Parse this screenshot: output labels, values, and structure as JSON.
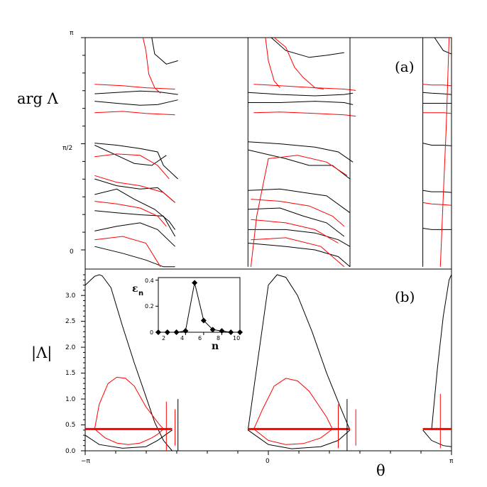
{
  "chart_data": [
    {
      "panel": "(a)",
      "type": "line",
      "ylabel": "arg Λ",
      "y_ticks": [
        "π",
        "π/2",
        "0"
      ],
      "series": [
        {
          "color": "#000000",
          "x": [
            -2.98,
            -2.6,
            -2.2,
            -1.9,
            -1.55
          ],
          "y": [
            2.31,
            2.33,
            2.35,
            2.34,
            2.3
          ]
        },
        {
          "color": "#000000",
          "x": [
            -2.98,
            -2.6,
            -2.2,
            -1.9,
            -1.55
          ],
          "y": [
            2.2,
            2.17,
            2.14,
            2.15,
            2.22
          ]
        },
        {
          "color": "#000000",
          "x": [
            -2.98,
            -2.6,
            -2.2,
            -1.9,
            -1.8,
            -1.55
          ],
          "y": [
            1.58,
            1.55,
            1.5,
            1.45,
            1.25,
            1.05
          ]
        },
        {
          "color": "#000000",
          "x": [
            -2.98,
            -2.6,
            -2.3,
            -2.0,
            -1.75
          ],
          "y": [
            1.55,
            1.4,
            1.28,
            1.25,
            1.4
          ]
        },
        {
          "color": "#000000",
          "x": [
            -2.98,
            -2.6,
            -2.2,
            -1.9,
            -1.6
          ],
          "y": [
            1.05,
            0.95,
            0.9,
            0.92,
            0.7
          ]
        },
        {
          "color": "#000000",
          "x": [
            -2.98,
            -2.6,
            -2.3,
            -1.95,
            -1.7,
            -1.6
          ],
          "y": [
            0.82,
            0.9,
            0.75,
            0.6,
            0.42,
            0.3
          ]
        },
        {
          "color": "#000000",
          "x": [
            -2.98,
            -2.6,
            -2.2,
            -1.8,
            -1.6
          ],
          "y": [
            0.58,
            0.55,
            0.52,
            0.5,
            0.2
          ]
        },
        {
          "color": "#000000",
          "x": [
            -2.98,
            -2.6,
            -2.2,
            -1.9,
            -1.6
          ],
          "y": [
            0.28,
            0.35,
            0.4,
            0.3,
            0.05
          ]
        },
        {
          "color": "#000000",
          "x": [
            -2.98,
            -2.5,
            -2.1,
            -1.8,
            -1.6
          ],
          "y": [
            0.05,
            -0.05,
            -0.15,
            -0.25,
            -0.25
          ]
        },
        {
          "color": "#000000",
          "x": [
            -2.0,
            -1.95,
            -1.75,
            -1.55
          ],
          "y": [
            3.3,
            2.9,
            2.75,
            2.8
          ]
        },
        {
          "color": "#ff0000",
          "x": [
            -2.15,
            -2.1,
            -2.05,
            -1.95,
            -1.85
          ],
          "y": [
            3.3,
            2.95,
            2.6,
            2.4,
            2.32
          ]
        },
        {
          "color": "#ff0000",
          "x": [
            -2.98,
            -2.5,
            -2.1,
            -1.6
          ],
          "y": [
            2.45,
            2.43,
            2.4,
            2.38
          ]
        },
        {
          "color": "#ff0000",
          "x": [
            -2.98,
            -2.5,
            -2.1,
            -1.6
          ],
          "y": [
            2.03,
            2.05,
            2.02,
            2.0
          ]
        },
        {
          "color": "#ff0000",
          "x": [
            -2.98,
            -2.6,
            -2.2,
            -1.9,
            -1.7
          ],
          "y": [
            1.38,
            1.42,
            1.4,
            1.25,
            1.05
          ]
        },
        {
          "color": "#ff0000",
          "x": [
            -2.98,
            -2.6,
            -2.2,
            -1.8,
            -1.6
          ],
          "y": [
            1.1,
            1.0,
            0.95,
            0.85,
            0.7
          ]
        },
        {
          "color": "#ff0000",
          "x": [
            -2.98,
            -2.6,
            -2.2,
            -1.9,
            -1.75
          ],
          "y": [
            0.72,
            0.68,
            0.62,
            0.5,
            0.35
          ]
        },
        {
          "color": "#ff0000",
          "x": [
            -2.98,
            -2.5,
            -2.1,
            -1.85
          ],
          "y": [
            0.15,
            0.2,
            0.1,
            -0.25
          ]
        },
        {
          "color": "#000000",
          "x": [
            -0.35,
            -0.35
          ],
          "y": [
            -0.25,
            3.3
          ]
        },
        {
          "color": "#000000",
          "x": [
            0.05,
            0.3,
            0.7,
            1.0,
            1.3
          ],
          "y": [
            3.3,
            2.95,
            2.85,
            2.88,
            2.92
          ]
        },
        {
          "color": "#000000",
          "x": [
            -0.35,
            0.2,
            0.8,
            1.3,
            1.45
          ],
          "y": [
            2.33,
            2.3,
            2.28,
            2.3,
            2.32
          ]
        },
        {
          "color": "#000000",
          "x": [
            -0.35,
            0.2,
            0.8,
            1.3,
            1.45
          ],
          "y": [
            2.18,
            2.18,
            2.2,
            2.18,
            2.15
          ]
        },
        {
          "color": "#000000",
          "x": [
            -0.35,
            0.2,
            0.8,
            1.2,
            1.45
          ],
          "y": [
            1.6,
            1.57,
            1.52,
            1.45,
            1.3
          ]
        },
        {
          "color": "#000000",
          "x": [
            -0.35,
            0.3,
            0.7,
            1.1,
            1.4
          ],
          "y": [
            1.48,
            1.35,
            1.25,
            1.25,
            1.05
          ]
        },
        {
          "color": "#000000",
          "x": [
            -0.35,
            0.2,
            0.6,
            1.0,
            1.4
          ],
          "y": [
            0.88,
            0.9,
            0.85,
            0.8,
            0.55
          ]
        },
        {
          "color": "#000000",
          "x": [
            -0.35,
            0.2,
            0.6,
            1.0,
            1.3
          ],
          "y": [
            0.6,
            0.62,
            0.5,
            0.4,
            0.2
          ]
        },
        {
          "color": "#000000",
          "x": [
            -0.35,
            0.3,
            0.8,
            1.2,
            1.4
          ],
          "y": [
            0.3,
            0.3,
            0.25,
            0.15,
            0.05
          ]
        },
        {
          "color": "#000000",
          "x": [
            -0.35,
            0.3,
            0.8,
            1.2,
            1.4
          ],
          "y": [
            0.1,
            0.05,
            0.0,
            -0.1,
            -0.25
          ]
        },
        {
          "color": "#ff0000",
          "x": [
            -0.05,
            0.0,
            0.1,
            0.2
          ],
          "y": [
            3.3,
            2.8,
            2.5,
            2.4
          ]
        },
        {
          "color": "#ff0000",
          "x": [
            0.1,
            0.3,
            0.45,
            0.6,
            0.8,
            0.95
          ],
          "y": [
            3.3,
            3.0,
            2.7,
            2.55,
            2.4,
            2.38
          ]
        },
        {
          "color": "#ff0000",
          "x": [
            -0.25,
            0.2,
            0.8,
            1.3,
            1.5
          ],
          "y": [
            2.45,
            2.43,
            2.4,
            2.38,
            2.36
          ]
        },
        {
          "color": "#ff0000",
          "x": [
            -0.25,
            0.2,
            0.8,
            1.3,
            1.5
          ],
          "y": [
            2.03,
            2.04,
            2.02,
            2.0,
            1.98
          ]
        },
        {
          "color": "#ff0000",
          "x": [
            -0.3,
            -0.2,
            0.0,
            0.5,
            1.0,
            1.35
          ],
          "y": [
            -0.25,
            0.5,
            1.35,
            1.4,
            1.3,
            1.1
          ]
        },
        {
          "color": "#ff0000",
          "x": [
            -0.3,
            0.2,
            0.7,
            1.1,
            1.3
          ],
          "y": [
            0.75,
            0.72,
            0.65,
            0.5,
            0.35
          ]
        },
        {
          "color": "#ff0000",
          "x": [
            -0.3,
            0.3,
            0.8,
            1.2
          ],
          "y": [
            0.45,
            0.4,
            0.3,
            0.1
          ]
        },
        {
          "color": "#ff0000",
          "x": [
            -0.3,
            0.3,
            0.9,
            1.3
          ],
          "y": [
            0.15,
            0.18,
            0.05,
            -0.25
          ]
        },
        {
          "color": "#000000",
          "x": [
            1.4,
            1.4
          ],
          "y": [
            -0.25,
            3.3
          ]
        },
        {
          "color": "#000000",
          "x": [
            2.65,
            2.65
          ],
          "y": [
            -0.25,
            3.3
          ]
        },
        {
          "color": "#000000",
          "x": [
            2.65,
            2.8,
            3.0,
            3.14
          ],
          "y": [
            2.33,
            2.32,
            2.31,
            2.3
          ]
        },
        {
          "color": "#000000",
          "x": [
            2.65,
            2.8,
            3.0,
            3.14
          ],
          "y": [
            2.17,
            2.17,
            2.17,
            2.17
          ]
        },
        {
          "color": "#000000",
          "x": [
            2.65,
            2.8,
            3.0,
            3.14
          ],
          "y": [
            1.58,
            1.55,
            1.55,
            1.54
          ]
        },
        {
          "color": "#000000",
          "x": [
            2.65,
            2.8,
            3.0,
            3.14
          ],
          "y": [
            0.88,
            0.86,
            0.86,
            0.85
          ]
        },
        {
          "color": "#000000",
          "x": [
            2.65,
            2.8,
            3.0,
            3.14
          ],
          "y": [
            0.32,
            0.3,
            0.3,
            0.3
          ]
        },
        {
          "color": "#000000",
          "x": [
            2.85,
            3.0,
            3.14
          ],
          "y": [
            3.3,
            2.95,
            2.9
          ]
        },
        {
          "color": "#ff0000",
          "x": [
            2.65,
            2.8,
            3.0,
            3.14
          ],
          "y": [
            2.45,
            2.44,
            2.44,
            2.43
          ]
        },
        {
          "color": "#ff0000",
          "x": [
            2.65,
            2.8,
            3.0,
            3.14
          ],
          "y": [
            2.03,
            2.03,
            2.03,
            2.02
          ]
        },
        {
          "color": "#ff0000",
          "x": [
            2.95,
            3.0,
            3.05,
            3.1
          ],
          "y": [
            -0.25,
            0.8,
            1.8,
            3.3
          ]
        },
        {
          "color": "#ff0000",
          "x": [
            2.65,
            2.8,
            3.0,
            3.14
          ],
          "y": [
            0.7,
            0.68,
            0.67,
            0.66
          ]
        }
      ]
    },
    {
      "panel": "(b)",
      "type": "line",
      "ylabel": "|Λ|",
      "xlabel": "θ",
      "x_ticks": [
        "−π",
        "0",
        "π"
      ],
      "y_ticks": [
        "0.0",
        "0.5",
        "1.0",
        "1.5",
        "2.0",
        "2.5",
        "3.0"
      ],
      "ylim": [
        0,
        3.4
      ],
      "series": [
        {
          "color": "#000000",
          "x": [
            -3.14,
            -2.98,
            -2.9,
            -2.85,
            -2.7,
            -2.5,
            -2.3,
            -2.1,
            -1.95,
            -1.8,
            -1.65
          ],
          "y": [
            3.2,
            3.37,
            3.4,
            3.38,
            3.15,
            2.4,
            1.7,
            1.05,
            0.55,
            0.2,
            0.0
          ]
        },
        {
          "color": "#000000",
          "x": [
            -3.14,
            -2.9,
            -2.5,
            -2.1,
            -1.9,
            -1.65
          ],
          "y": [
            0.3,
            0.12,
            0.05,
            0.08,
            0.2,
            0.4
          ]
        },
        {
          "color": "#ff0000",
          "x": [
            -2.98,
            -2.9,
            -2.75,
            -2.6,
            -2.45,
            -2.3,
            -2.2,
            -2.1,
            -2.0,
            -1.9,
            -1.8
          ],
          "y": [
            0.42,
            0.9,
            1.3,
            1.42,
            1.4,
            1.25,
            1.05,
            0.85,
            0.7,
            0.55,
            0.42
          ]
        },
        {
          "color": "#ff0000",
          "x": [
            -2.98,
            -2.8,
            -2.6,
            -2.4,
            -2.2,
            -2.0,
            -1.9,
            -1.8
          ],
          "y": [
            0.42,
            0.25,
            0.15,
            0.12,
            0.15,
            0.25,
            0.32,
            0.42
          ]
        },
        {
          "color": "#000000",
          "x": [
            -0.35,
            -0.2,
            0.0,
            0.15,
            0.3,
            0.5,
            0.75,
            1.0,
            1.25,
            1.4
          ],
          "y": [
            0.4,
            1.6,
            3.2,
            3.4,
            3.35,
            3.0,
            2.3,
            1.5,
            0.8,
            0.4
          ]
        },
        {
          "color": "#000000",
          "x": [
            -0.35,
            0.0,
            0.4,
            0.9,
            1.2,
            1.4
          ],
          "y": [
            0.4,
            0.12,
            0.04,
            0.08,
            0.2,
            0.4
          ]
        },
        {
          "color": "#ff0000",
          "x": [
            -0.25,
            -0.1,
            0.1,
            0.3,
            0.5,
            0.7,
            0.85,
            1.0,
            1.1
          ],
          "y": [
            0.42,
            0.8,
            1.25,
            1.4,
            1.35,
            1.15,
            0.9,
            0.65,
            0.42
          ]
        },
        {
          "color": "#ff0000",
          "x": [
            -0.25,
            0.0,
            0.3,
            0.6,
            0.9,
            1.1
          ],
          "y": [
            0.42,
            0.2,
            0.12,
            0.14,
            0.25,
            0.42
          ]
        },
        {
          "color": "#000000",
          "x": [
            2.8,
            2.9,
            3.0,
            3.1,
            3.14
          ],
          "y": [
            0.4,
            1.6,
            2.6,
            3.3,
            3.4
          ]
        },
        {
          "color": "#000000",
          "x": [
            2.65,
            2.8,
            3.0,
            3.14
          ],
          "y": [
            0.4,
            0.2,
            0.1,
            0.08
          ]
        },
        {
          "color": "#ff0000",
          "x": [
            -3.14,
            -1.65
          ],
          "y": [
            0.42,
            0.42
          ]
        },
        {
          "color": "#ff0000",
          "x": [
            -0.35,
            1.4
          ],
          "y": [
            0.42,
            0.42
          ]
        },
        {
          "color": "#ff0000",
          "x": [
            2.65,
            3.14
          ],
          "y": [
            0.42,
            0.42
          ]
        },
        {
          "color": "#000000",
          "x": [
            -1.55,
            -1.55
          ],
          "y": [
            0.0,
            1.0
          ]
        },
        {
          "color": "#ff0000",
          "x": [
            -1.75,
            -1.75
          ],
          "y": [
            0.0,
            0.95
          ]
        },
        {
          "color": "#ff0000",
          "x": [
            -1.6,
            -1.6
          ],
          "y": [
            0.1,
            0.8
          ]
        },
        {
          "color": "#000000",
          "x": [
            1.35,
            1.35
          ],
          "y": [
            0.0,
            1.0
          ]
        },
        {
          "color": "#ff0000",
          "x": [
            1.2,
            1.2
          ],
          "y": [
            0.05,
            0.9
          ]
        },
        {
          "color": "#ff0000",
          "x": [
            1.5,
            1.5
          ],
          "y": [
            0.1,
            0.8
          ]
        },
        {
          "color": "#ff0000",
          "x": [
            2.95,
            2.95
          ],
          "y": [
            0.05,
            1.1
          ]
        }
      ]
    },
    {
      "panel": "inset",
      "type": "line",
      "ylabel": "ε",
      "ylabel_sub": "n",
      "xlabel": "n",
      "x_ticks": [
        "2",
        "4",
        "6",
        "8",
        "10"
      ],
      "y_ticks": [
        "0",
        "0.2",
        "0.4"
      ],
      "xlim": [
        1,
        10
      ],
      "ylim": [
        0,
        0.42
      ],
      "x": [
        1,
        2,
        3,
        4,
        5,
        6,
        7,
        8,
        9,
        10
      ],
      "y": [
        0.0,
        0.0,
        0.0,
        0.01,
        0.38,
        0.09,
        0.02,
        0.01,
        0.0,
        0.0
      ]
    }
  ],
  "labels": {
    "panel_a": "(a)",
    "panel_b": "(b)",
    "arg_lambda": "arg Λ",
    "abs_lambda": "|Λ|",
    "theta": "θ"
  }
}
